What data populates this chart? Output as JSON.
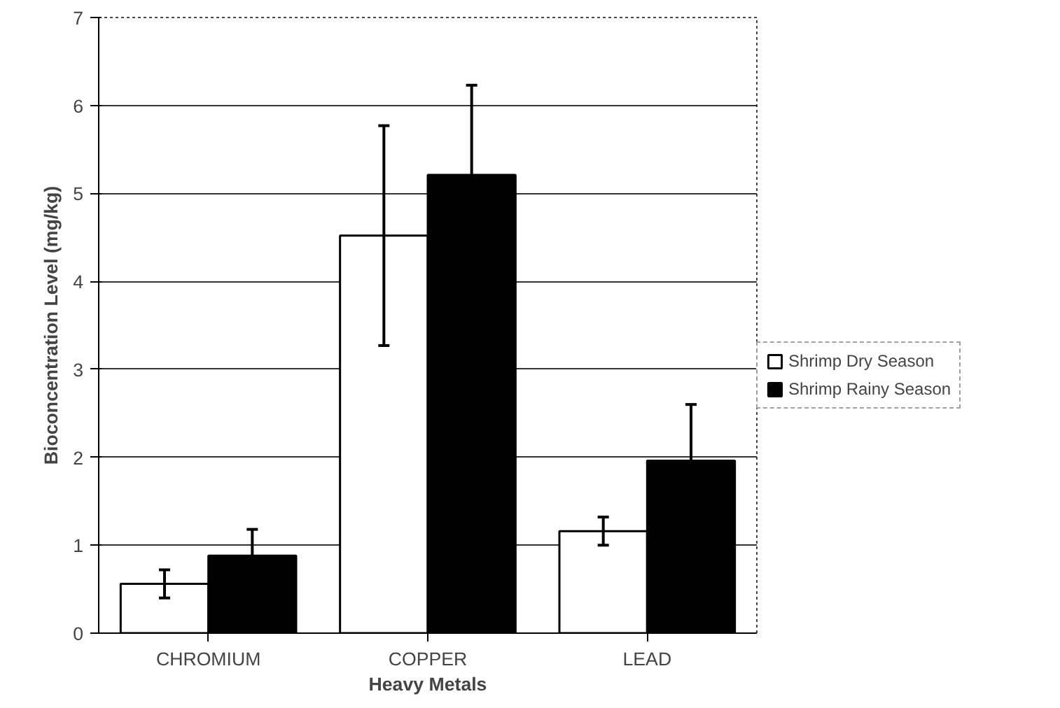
{
  "chart_data": {
    "type": "bar",
    "xlabel": "Heavy Metals",
    "ylabel": "Bioconcentration Level (mg/kg)",
    "categories": [
      "CHROMIUM",
      "COPPER",
      "LEAD"
    ],
    "series": [
      {
        "name": "Shrimp Dry Season",
        "color": "#ffffff",
        "values": [
          0.56,
          4.52,
          1.16
        ],
        "errors": [
          0.16,
          1.25,
          0.16
        ]
      },
      {
        "name": "Shrimp Rainy Season",
        "color": "#000000",
        "values": [
          0.88,
          5.21,
          1.96
        ],
        "errors": [
          0.3,
          1.02,
          0.64
        ]
      }
    ],
    "ylim": [
      0,
      7
    ],
    "yticks": [
      0,
      1,
      2,
      3,
      4,
      5,
      6,
      7
    ],
    "grid": "y",
    "legend": "right"
  }
}
